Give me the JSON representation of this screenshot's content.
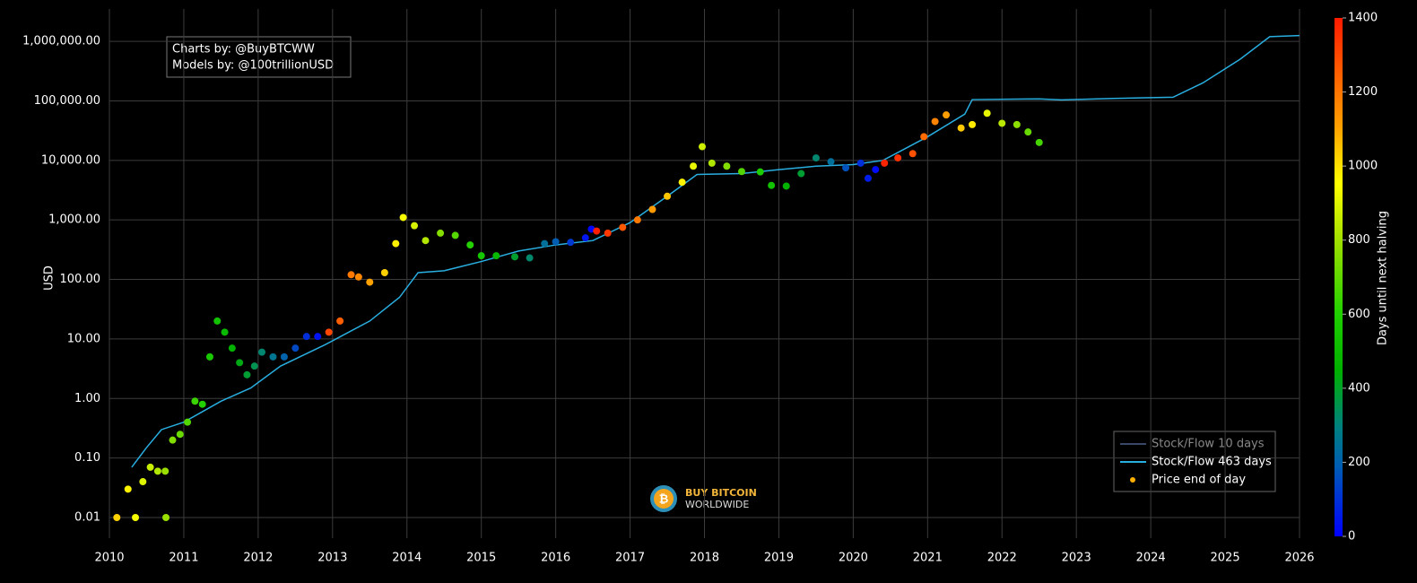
{
  "chart_data": {
    "type": "scatter",
    "annotation": [
      "Charts by: @BuyBTCWW",
      "Models by: @100trillionUSD"
    ],
    "logo_text": [
      "BUY BITCOIN",
      "WORLDWIDE"
    ],
    "ylabel": "USD",
    "log_y": true,
    "grid": true,
    "legend": "lower right",
    "xlim": [
      2010,
      2026
    ],
    "ylim": [
      0.0045,
      3500000
    ],
    "xticks": [
      2010,
      2011,
      2012,
      2013,
      2014,
      2015,
      2016,
      2017,
      2018,
      2019,
      2020,
      2021,
      2022,
      2023,
      2024,
      2025,
      2026
    ],
    "yticks": [
      {
        "value": 0.01,
        "label": "0.01"
      },
      {
        "value": 0.1,
        "label": "0.10"
      },
      {
        "value": 1,
        "label": "1.00"
      },
      {
        "value": 10,
        "label": "10.00"
      },
      {
        "value": 100,
        "label": "100.00"
      },
      {
        "value": 1000,
        "label": "1,000.00"
      },
      {
        "value": 10000,
        "label": "10,000.00"
      },
      {
        "value": 100000,
        "label": "100,000.00"
      },
      {
        "value": 1000000,
        "label": "1,000,000.00"
      }
    ],
    "series": [
      {
        "name": "Stock/Flow 10 days",
        "color": "#3a4868",
        "type": "line"
      },
      {
        "name": "Stock/Flow 463 days",
        "color": "#29aee0",
        "type": "line",
        "x": [
          2010.3,
          2010.5,
          2010.7,
          2011.0,
          2011.5,
          2011.9,
          2012.3,
          2012.9,
          2013.5,
          2013.9,
          2014.15,
          2014.5,
          2015.0,
          2015.5,
          2016.0,
          2016.5,
          2017.0,
          2017.5,
          2017.9,
          2018.5,
          2019.0,
          2019.5,
          2020.0,
          2020.4,
          2021.0,
          2021.5,
          2021.6,
          2022.5,
          2022.8,
          2023.5,
          2024.3,
          2024.7,
          2025.2,
          2025.6,
          2026.0
        ],
        "values": [
          0.07,
          0.15,
          0.3,
          0.4,
          0.9,
          1.5,
          3.5,
          8,
          20,
          50,
          130,
          140,
          200,
          300,
          380,
          450,
          900,
          2500,
          5800,
          6000,
          7000,
          8000,
          8500,
          10000,
          25000,
          60000,
          105000,
          108000,
          104000,
          110000,
          115000,
          200000,
          500000,
          1200000,
          1250000
        ]
      },
      {
        "name": "Price end of day",
        "color": "#ffb000",
        "type": "scatter",
        "x": [
          2010.1,
          2010.25,
          2010.35,
          2010.45,
          2010.55,
          2010.65,
          2010.75,
          2010.76,
          2010.85,
          2010.95,
          2011.05,
          2011.15,
          2011.25,
          2011.35,
          2011.45,
          2011.55,
          2011.65,
          2011.75,
          2011.85,
          2011.95,
          2012.05,
          2012.2,
          2012.35,
          2012.5,
          2012.65,
          2012.8,
          2012.95,
          2013.1,
          2013.25,
          2013.35,
          2013.5,
          2013.7,
          2013.85,
          2013.95,
          2014.1,
          2014.25,
          2014.45,
          2014.65,
          2014.85,
          2015.0,
          2015.2,
          2015.45,
          2015.65,
          2015.85,
          2016.0,
          2016.2,
          2016.4,
          2016.48,
          2016.55,
          2016.7,
          2016.9,
          2017.1,
          2017.3,
          2017.5,
          2017.7,
          2017.85,
          2017.97,
          2018.1,
          2018.3,
          2018.5,
          2018.75,
          2018.9,
          2019.1,
          2019.3,
          2019.5,
          2019.7,
          2019.9,
          2020.1,
          2020.2,
          2020.3,
          2020.42,
          2020.6,
          2020.8,
          2020.95,
          2021.1,
          2021.25,
          2021.45,
          2021.6,
          2021.8,
          2022.0,
          2022.2,
          2022.35,
          2022.5
        ],
        "values": [
          0.01,
          0.03,
          0.01,
          0.04,
          0.07,
          0.06,
          0.06,
          0.01,
          0.2,
          0.25,
          0.4,
          0.9,
          0.8,
          5,
          20,
          13,
          7,
          4,
          2.5,
          3.5,
          6,
          5,
          5,
          7,
          11,
          11,
          13,
          20,
          120,
          110,
          90,
          130,
          400,
          1100,
          800,
          450,
          600,
          550,
          380,
          250,
          250,
          240,
          230,
          400,
          430,
          420,
          500,
          700,
          650,
          600,
          750,
          1000,
          1500,
          2500,
          4300,
          8000,
          17000,
          9000,
          8000,
          6500,
          6400,
          3800,
          3700,
          6000,
          11000,
          9500,
          7500,
          9000,
          5000,
          7000,
          9000,
          11000,
          13000,
          25000,
          45000,
          58000,
          35000,
          40000,
          62000,
          42000,
          40000,
          30000,
          20000
        ],
        "color_values": [
          1026,
          972,
          935,
          899,
          862,
          826,
          789,
          786,
          752,
          716,
          679,
          643,
          606,
          570,
          533,
          497,
          460,
          424,
          387,
          351,
          314,
          259,
          205,
          150,
          95,
          40,
          1304,
          1249,
          1194,
          1158,
          1103,
          1030,
          975,
          939,
          884,
          829,
          756,
          683,
          610,
          555,
          482,
          391,
          318,
          245,
          190,
          117,
          44,
          15,
          1392,
          1337,
          1264,
          1191,
          1118,
          1045,
          972,
          917,
          873,
          826,
          753,
          680,
          588,
          534,
          460,
          387,
          314,
          241,
          168,
          95,
          58,
          22,
          1376,
          1351,
          1278,
          1223,
          1169,
          1114,
          1041,
          986,
          913,
          840,
          767,
          712,
          657
        ]
      }
    ],
    "colorbar": {
      "title": "Days until next halving",
      "lim": [
        0,
        1400
      ],
      "ticks": [
        0,
        200,
        400,
        600,
        800,
        1000,
        1200,
        1400
      ],
      "colorscale": [
        [
          0,
          "#0000ff"
        ],
        [
          0.14,
          "#0060b0"
        ],
        [
          0.21,
          "#008080"
        ],
        [
          0.32,
          "#00b000"
        ],
        [
          0.43,
          "#20d000"
        ],
        [
          0.57,
          "#a0e000"
        ],
        [
          0.68,
          "#ffff00"
        ],
        [
          0.79,
          "#ffa000"
        ],
        [
          1,
          "#ff1a00"
        ]
      ]
    }
  }
}
